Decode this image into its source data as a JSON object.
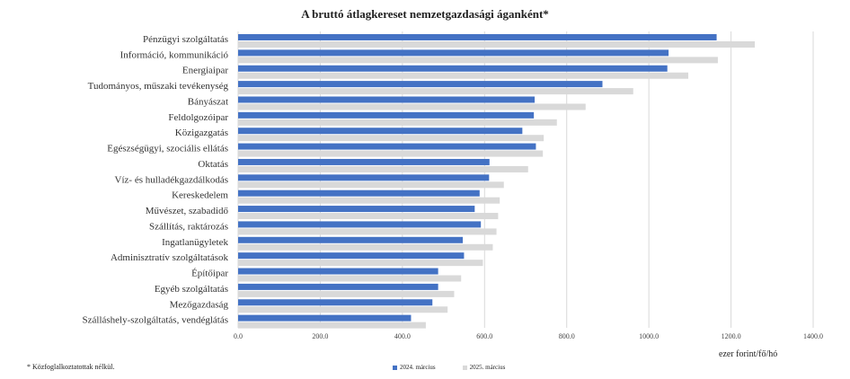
{
  "title": "A bruttó átlagkereset nemzetgazdasági áganként*",
  "unit_label": "ezer forint/fő/hó",
  "footnote": "* Közfoglalkoztatottak nélkül.",
  "colors": {
    "series_2024": "#4472c4",
    "series_2025": "#d9d9d9",
    "grid": "#d9d9d9"
  },
  "chart_data": {
    "type": "bar",
    "orientation": "horizontal",
    "title": "A bruttó átlagkereset nemzetgazdasági áganként*",
    "xlabel": "ezer forint/fő/hó",
    "xlim": [
      0,
      1400
    ],
    "xticks": [
      "0.0",
      "200.0",
      "400.0",
      "600.0",
      "800.0",
      "1000.0",
      "1200.0",
      "1400.0"
    ],
    "grid": "vertical",
    "legend": "bottom-center",
    "categories": [
      "Pénzügyi szolgáltatás",
      "Információ, kommunikáció",
      "Energiaipar",
      "Tudományos, műszaki tevékenység",
      "Bányászat",
      "Feldolgozóipar",
      "Közigazgatás",
      "Egészségügyi, szociális ellátás",
      "Oktatás",
      "Víz- és hulladékgazdálkodás",
      "Kereskedelem",
      "Művészet, szabadidő",
      "Szállítás, raktározás",
      "Ingatlanügyletek",
      "Adminisztratív szolgáltatások",
      "Építőipar",
      "Egyéb szolgáltatás",
      "Mezőgazdaság",
      "Szálláshely-szolgáltatás, vendéglátás"
    ],
    "series": [
      {
        "name": "2024. március",
        "values": [
          1165,
          1048,
          1045,
          887,
          722,
          720,
          692,
          725,
          612,
          611,
          588,
          576,
          591,
          547,
          550,
          487,
          487,
          473,
          421
        ]
      },
      {
        "name": "2025. március",
        "values": [
          1258,
          1168,
          1096,
          962,
          846,
          776,
          744,
          742,
          706,
          647,
          637,
          633,
          629,
          620,
          596,
          543,
          526,
          510,
          457
        ]
      }
    ]
  }
}
